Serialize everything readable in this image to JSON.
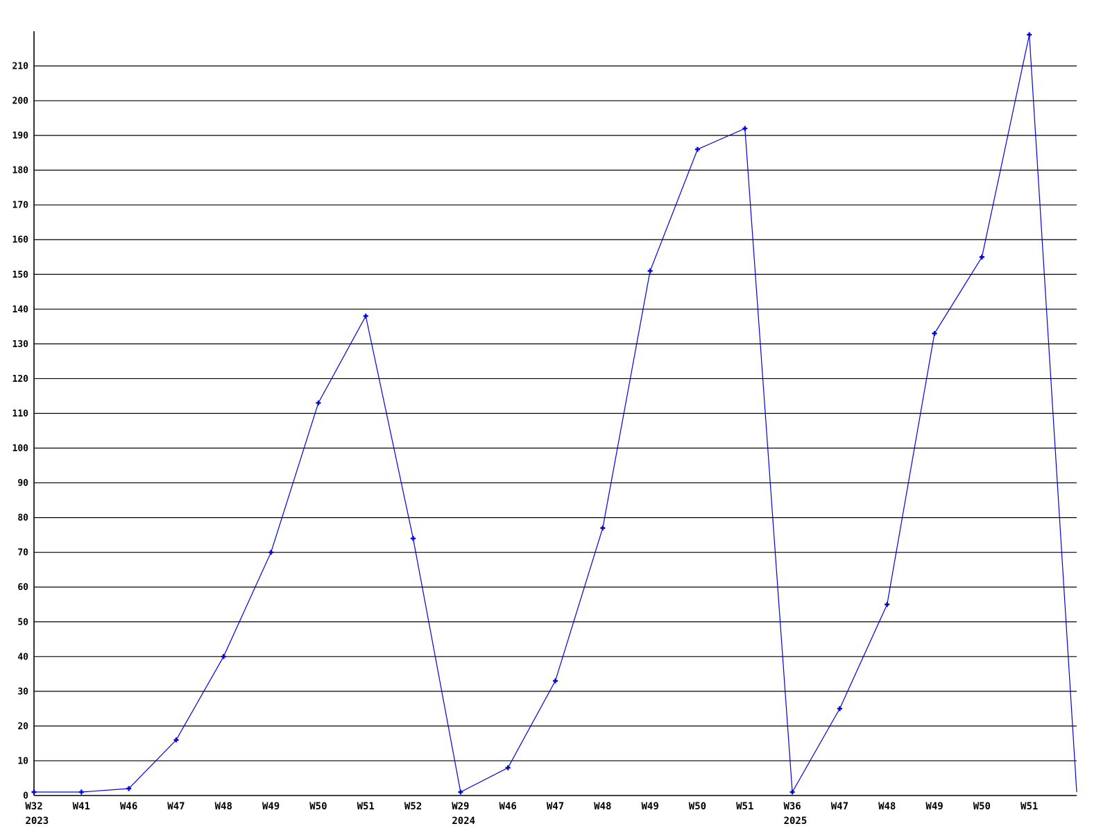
{
  "chart_data": {
    "type": "line",
    "title": "",
    "legend": "none",
    "grid": true,
    "x_labels": [
      "W32",
      "W41",
      "W46",
      "W47",
      "W48",
      "W49",
      "W50",
      "W51",
      "W52",
      "W29",
      "W46",
      "W47",
      "W48",
      "W49",
      "W50",
      "W51",
      "W36",
      "W47",
      "W48",
      "W49",
      "W50",
      "W51",
      ""
    ],
    "year_markers": [
      {
        "index": 0,
        "year": "2023"
      },
      {
        "index": 9,
        "year": "2024"
      },
      {
        "index": 16,
        "year": "2025"
      }
    ],
    "values": [
      1,
      1,
      2,
      16,
      40,
      70,
      113,
      138,
      74,
      1,
      8,
      33,
      77,
      151,
      186,
      192,
      1,
      25,
      55,
      133,
      155,
      219,
      1
    ],
    "marker_skip_last": true,
    "yticks": [
      0,
      10,
      20,
      30,
      40,
      50,
      60,
      70,
      80,
      90,
      100,
      110,
      120,
      130,
      140,
      150,
      160,
      170,
      180,
      190,
      200,
      210
    ],
    "ylim": [
      0,
      220
    ],
    "colors": {
      "line": "#0000dd",
      "marker": "#0000dd",
      "grid": "#000000",
      "axis": "#000000",
      "text": "#000000",
      "background": "#ffffff"
    }
  }
}
